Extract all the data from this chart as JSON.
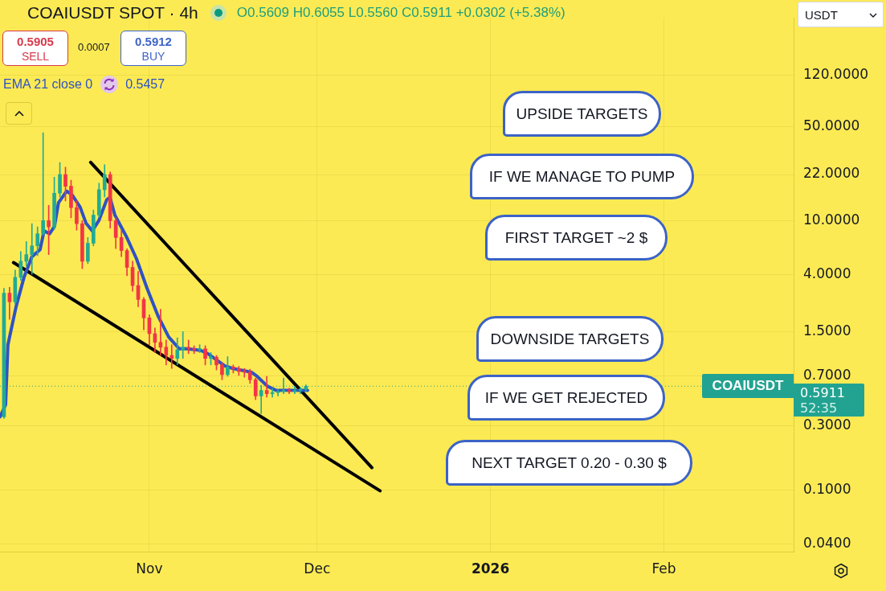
{
  "chart_data": {
    "type": "candlestick",
    "title": "COAIUSDT SPOT · 4h",
    "subtitle": "O0.5609 H0.6055 L0.5560 C0.5911 +0.0302 (+5.38%)",
    "x": [
      "2025-10-06",
      "2025-10-07",
      "2025-10-08",
      "2025-10-09",
      "2025-10-10",
      "2025-10-11",
      "2025-10-12",
      "2025-10-13",
      "2025-10-14",
      "2025-10-15",
      "2025-10-16",
      "2025-10-17",
      "2025-10-18",
      "2025-10-19",
      "2025-10-20",
      "2025-10-21",
      "2025-10-22",
      "2025-10-23",
      "2025-10-24",
      "2025-10-25",
      "2025-10-26",
      "2025-10-27",
      "2025-10-28",
      "2025-10-29",
      "2025-10-30",
      "2025-10-31",
      "2025-11-01",
      "2025-11-02",
      "2025-11-03",
      "2025-11-04",
      "2025-11-05",
      "2025-11-06",
      "2025-11-07",
      "2025-11-08",
      "2025-11-09",
      "2025-11-10",
      "2025-11-11",
      "2025-11-12",
      "2025-11-13",
      "2025-11-14",
      "2025-11-15",
      "2025-11-16",
      "2025-11-17",
      "2025-11-18",
      "2025-11-19",
      "2025-11-20",
      "2025-11-21",
      "2025-11-22",
      "2025-11-23",
      "2025-11-24",
      "2025-11-25",
      "2025-11-26",
      "2025-11-27",
      "2025-11-28",
      "2025-11-29"
    ],
    "ohlc": [
      [
        0.35,
        3.15,
        0.34,
        2.9
      ],
      [
        2.9,
        3.2,
        1.85,
        2.5
      ],
      [
        2.5,
        4.3,
        2.4,
        3.8
      ],
      [
        3.8,
        5.9,
        3.6,
        5.0
      ],
      [
        5.0,
        7.0,
        4.6,
        5.6
      ],
      [
        5.6,
        9.5,
        4.0,
        6.5
      ],
      [
        6.5,
        9.0,
        5.5,
        8.0
      ],
      [
        8.0,
        44.9,
        7.8,
        10
      ],
      [
        10,
        13,
        5.6,
        9.0
      ],
      [
        9.0,
        21,
        8.6,
        16
      ],
      [
        16,
        27,
        15,
        22
      ],
      [
        22,
        25,
        14,
        18
      ],
      [
        18,
        20,
        10.5,
        12.5
      ],
      [
        12.5,
        14,
        8.5,
        9.5
      ],
      [
        9.5,
        10,
        4.4,
        5.0
      ],
      [
        5.0,
        7.5,
        4.8,
        6.8
      ],
      [
        6.8,
        12,
        6.5,
        11
      ],
      [
        11,
        19,
        10.5,
        17
      ],
      [
        17,
        26,
        15,
        22
      ],
      [
        22,
        23,
        8.8,
        10
      ],
      [
        10,
        10.5,
        6.2,
        7.5
      ],
      [
        7.5,
        8.5,
        5.4,
        6.0
      ],
      [
        6.0,
        6.2,
        3.9,
        4.5
      ],
      [
        4.5,
        5.0,
        3.0,
        3.3
      ],
      [
        3.3,
        4.2,
        2.3,
        2.6
      ],
      [
        2.6,
        2.7,
        1.55,
        1.9
      ],
      [
        1.9,
        2.0,
        1.2,
        1.45
      ],
      [
        1.45,
        1.6,
        1.05,
        1.25
      ],
      [
        1.25,
        2.2,
        1.0,
        1.15
      ],
      [
        1.15,
        1.3,
        0.85,
        1.0
      ],
      [
        1.0,
        1.2,
        0.8,
        0.95
      ],
      [
        0.95,
        1.35,
        0.85,
        1.1
      ],
      [
        1.1,
        1.5,
        0.95,
        1.15
      ],
      [
        1.15,
        1.3,
        1.03,
        1.12
      ],
      [
        1.12,
        1.18,
        1.03,
        1.1
      ],
      [
        1.1,
        1.2,
        1.05,
        1.12
      ],
      [
        1.12,
        1.18,
        0.85,
        0.95
      ],
      [
        0.95,
        1.05,
        0.85,
        0.97
      ],
      [
        0.97,
        1.0,
        0.78,
        0.85
      ],
      [
        0.85,
        0.88,
        0.66,
        0.72
      ],
      [
        0.72,
        0.98,
        0.7,
        0.82
      ],
      [
        0.82,
        0.85,
        0.74,
        0.8
      ],
      [
        0.8,
        0.83,
        0.71,
        0.76
      ],
      [
        0.76,
        0.8,
        0.69,
        0.75
      ],
      [
        0.75,
        0.79,
        0.62,
        0.66
      ],
      [
        0.66,
        0.68,
        0.47,
        0.5
      ],
      [
        0.5,
        0.6,
        0.37,
        0.55
      ],
      [
        0.55,
        0.7,
        0.49,
        0.52
      ],
      [
        0.52,
        0.57,
        0.49,
        0.53
      ],
      [
        0.53,
        0.56,
        0.5,
        0.54
      ],
      [
        0.54,
        0.68,
        0.52,
        0.55
      ],
      [
        0.55,
        0.57,
        0.52,
        0.54
      ],
      [
        0.54,
        0.59,
        0.52,
        0.55
      ],
      [
        0.55,
        0.58,
        0.52,
        0.56
      ],
      [
        0.56,
        0.6055,
        0.54,
        0.5911
      ]
    ],
    "colors": [
      "#22ab94",
      "#f23645",
      "#22ab94",
      "#22ab94",
      "#22ab94",
      "#22ab94",
      "#22ab94",
      "#22ab94",
      "#f23645",
      "#22ab94",
      "#22ab94",
      "#f23645",
      "#f23645",
      "#f23645",
      "#f23645",
      "#22ab94",
      "#22ab94",
      "#22ab94",
      "#22ab94",
      "#f23645",
      "#f23645",
      "#f23645",
      "#f23645",
      "#f23645",
      "#f23645",
      "#f23645",
      "#f23645",
      "#f23645",
      "#f23645",
      "#f23645",
      "#f23645",
      "#22ab94",
      "#22ab94",
      "#f23645",
      "#f23645",
      "#22ab94",
      "#f23645",
      "#22ab94",
      "#f23645",
      "#f23645",
      "#22ab94",
      "#f23645",
      "#f23645",
      "#f23645",
      "#f23645",
      "#f23645",
      "#22ab94",
      "#f23645",
      "#22ab94",
      "#22ab94",
      "#22ab94",
      "#f23645",
      "#22ab94",
      "#22ab94",
      "#22ab94"
    ],
    "series": [
      {
        "type": "line",
        "name": "EMA 21 close 0",
        "color": "#2f52c4",
        "x": [
          "2025-10-05T07:00",
          "2025-10-06T07:00",
          "2025-10-06T17:00",
          "2025-10-08T04:00",
          "2025-10-09T14:00",
          "2025-10-11T00:00",
          "2025-10-12T11:00",
          "2025-10-13T04:00",
          "2025-10-14T04:00",
          "2025-10-15T01:00",
          "2025-10-15T18:00",
          "2025-10-17T05:00",
          "2025-10-18T05:00",
          "2025-10-19T15:00",
          "2025-10-20T16:00",
          "2025-10-21T19:00",
          "2025-10-22T23:00",
          "2025-10-24T09:00",
          "2025-10-24T23:00",
          "2025-10-25T20:00",
          "2025-10-27T20:00",
          "2025-10-29T17:00",
          "2025-10-31T14:00",
          "2025-11-02T14:00",
          "2025-11-04T11:00",
          "2025-11-06T08:00",
          "2025-11-07T18:00",
          "2025-11-10T05:00",
          "2025-11-11T15:00",
          "2025-11-14T12:00",
          "2025-11-15T23:00",
          "2025-11-19T06:00",
          "2025-11-20T06:00",
          "2025-11-22T03:00",
          "2025-11-23T13:00",
          "2025-11-29T07:00"
        ],
        "values": [
          0.35,
          0.43,
          1.2,
          2.3,
          3.8,
          5.4,
          6.1,
          8.4,
          8.0,
          9.1,
          13.6,
          16.6,
          15.5,
          12.6,
          9.6,
          8.4,
          10.0,
          14.3,
          14.9,
          11.0,
          7.7,
          5.2,
          3.15,
          1.95,
          1.37,
          1.12,
          1.12,
          1.09,
          1.02,
          0.835,
          0.8,
          0.75,
          0.7,
          0.59,
          0.553,
          0.55
        ]
      },
      {
        "type": "line",
        "color": "#000000",
        "x": [
          "2025-10-21T12:00",
          "2025-12-10T19:00"
        ],
        "values": [
          27.1,
          0.147
        ]
      },
      {
        "type": "line",
        "color": "#000000",
        "x": [
          "2025-10-07T17:00",
          "2025-12-12T06:00"
        ],
        "values": [
          4.89,
          0.099
        ]
      }
    ],
    "xlim": [
      "2025-10-05T07:00",
      "2026-02-24T05:00"
    ],
    "xticks": [
      {
        "value": "2025-11-01",
        "label": "Nov"
      },
      {
        "value": "2025-12-01",
        "label": "Dec"
      },
      {
        "value": "2026-01-01",
        "label": "2026"
      },
      {
        "value": "2026-02-01",
        "label": "Feb"
      }
    ],
    "ylim": [
      0.035,
      320
    ],
    "yticks": [
      {
        "value": 0.04,
        "label": "0.0400"
      },
      {
        "value": 0.1,
        "label": "0.1000"
      },
      {
        "value": 0.3,
        "label": "0.3000"
      },
      {
        "value": 0.7,
        "label": "0.7000"
      },
      {
        "value": 1.5,
        "label": "1.5000"
      },
      {
        "value": 4,
        "label": "4.0000"
      },
      {
        "value": 10,
        "label": "10.0000"
      },
      {
        "value": 22,
        "label": "22.0000"
      },
      {
        "value": 50,
        "label": "50.0000"
      },
      {
        "value": 120,
        "label": "120.0000"
      }
    ],
    "log": true,
    "grid": true,
    "legend": "top left",
    "ref_lines": [
      {
        "axis": "y",
        "value": 0.5911,
        "label": "COAIUSDT",
        "color": "#22a391",
        "line_style": "dotted"
      }
    ],
    "annotations": [
      "0.5905",
      "SELL",
      "0.0007",
      "0.5912",
      "BUY",
      "0.5457",
      "UPSIDE TARGETS",
      "IF WE MANAGE TO PUMP",
      "FIRST TARGET ~2 $",
      "DOWNSIDE TARGETS",
      "IF WE GET REJECTED",
      "NEXT TARGET 0.20 - 0.30 $",
      "0.5911",
      "52:35",
      "USDT"
    ]
  }
}
